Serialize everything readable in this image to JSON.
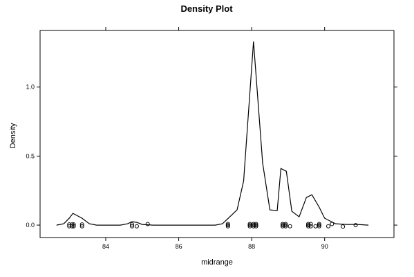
{
  "chart_data": {
    "type": "line",
    "title": "Density Plot",
    "xlabel": "midrange",
    "ylabel": "Density",
    "xlim": [
      82.2,
      91.9
    ],
    "ylim": [
      -0.09,
      1.41
    ],
    "x_ticks": [
      {
        "value": 84,
        "label": "84"
      },
      {
        "value": 86,
        "label": "86"
      },
      {
        "value": 88,
        "label": "88"
      },
      {
        "value": 90,
        "label": "90"
      }
    ],
    "y_ticks": [
      {
        "value": 0.0,
        "label": "0.0"
      },
      {
        "value": 0.5,
        "label": "0.5"
      },
      {
        "value": 1.0,
        "label": "1.0"
      }
    ],
    "grid": false,
    "series": [
      {
        "x": [
          82.65,
          82.85,
          83.0,
          83.1,
          83.35,
          83.55,
          83.75,
          84.0,
          84.4,
          84.6,
          84.72,
          84.85,
          85.0,
          85.3,
          86.0,
          87.0,
          87.2,
          87.4,
          87.6,
          87.78,
          88.05,
          88.3,
          88.5,
          88.7,
          88.8,
          88.95,
          89.1,
          89.3,
          89.5,
          89.65,
          89.85,
          90.0,
          90.3,
          90.6,
          90.9,
          91.2
        ],
        "y": [
          0.0,
          0.01,
          0.05,
          0.085,
          0.05,
          0.01,
          0.0,
          0.0,
          0.0,
          0.01,
          0.025,
          0.02,
          0.005,
          0.0,
          0.0,
          0.0,
          0.01,
          0.06,
          0.11,
          0.32,
          1.33,
          0.45,
          0.11,
          0.105,
          0.41,
          0.39,
          0.1,
          0.06,
          0.2,
          0.22,
          0.13,
          0.05,
          0.01,
          0.005,
          0.005,
          0.0
        ]
      }
    ],
    "rug_points": [
      {
        "x": 83.0,
        "y": 0.005
      },
      {
        "x": 83.0,
        "y": -0.008
      },
      {
        "x": 83.08,
        "y": 0.005
      },
      {
        "x": 83.08,
        "y": -0.008
      },
      {
        "x": 83.12,
        "y": 0.005
      },
      {
        "x": 83.12,
        "y": -0.008
      },
      {
        "x": 83.35,
        "y": 0.005
      },
      {
        "x": 83.35,
        "y": -0.008
      },
      {
        "x": 84.72,
        "y": 0.005
      },
      {
        "x": 84.72,
        "y": -0.008
      },
      {
        "x": 84.85,
        "y": -0.008
      },
      {
        "x": 85.15,
        "y": 0.008
      },
      {
        "x": 87.35,
        "y": 0.008
      },
      {
        "x": 87.35,
        "y": 0.0
      },
      {
        "x": 87.35,
        "y": -0.008
      },
      {
        "x": 87.95,
        "y": 0.008
      },
      {
        "x": 87.95,
        "y": 0.0
      },
      {
        "x": 87.95,
        "y": -0.008
      },
      {
        "x": 88.05,
        "y": 0.008
      },
      {
        "x": 88.05,
        "y": 0.0
      },
      {
        "x": 88.05,
        "y": -0.008
      },
      {
        "x": 88.12,
        "y": 0.008
      },
      {
        "x": 88.12,
        "y": 0.0
      },
      {
        "x": 88.12,
        "y": -0.008
      },
      {
        "x": 88.85,
        "y": 0.008
      },
      {
        "x": 88.85,
        "y": 0.0
      },
      {
        "x": 88.85,
        "y": -0.008
      },
      {
        "x": 88.93,
        "y": 0.008
      },
      {
        "x": 88.93,
        "y": 0.0
      },
      {
        "x": 88.93,
        "y": -0.008
      },
      {
        "x": 89.05,
        "y": -0.008
      },
      {
        "x": 89.55,
        "y": 0.008
      },
      {
        "x": 89.55,
        "y": 0.0
      },
      {
        "x": 89.55,
        "y": -0.008
      },
      {
        "x": 89.62,
        "y": 0.008
      },
      {
        "x": 89.62,
        "y": -0.008
      },
      {
        "x": 89.75,
        "y": -0.008
      },
      {
        "x": 89.85,
        "y": 0.008
      },
      {
        "x": 89.85,
        "y": 0.0
      },
      {
        "x": 89.85,
        "y": -0.008
      },
      {
        "x": 90.1,
        "y": -0.008
      },
      {
        "x": 90.2,
        "y": 0.008
      },
      {
        "x": 90.5,
        "y": -0.01
      },
      {
        "x": 90.85,
        "y": 0.0
      }
    ]
  }
}
